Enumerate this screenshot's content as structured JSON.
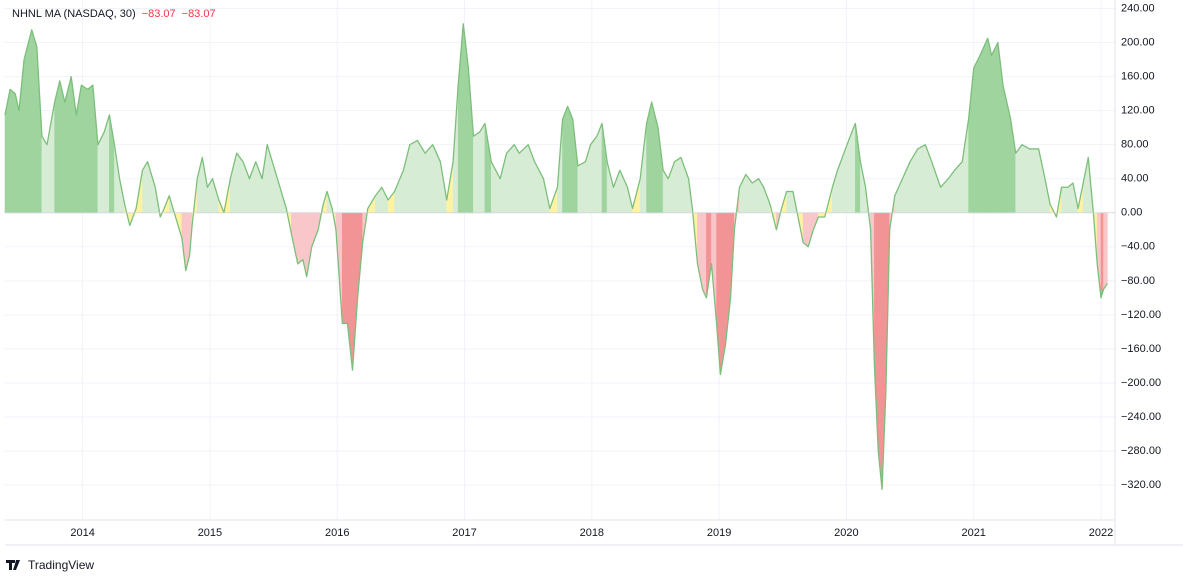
{
  "chart_data": {
    "type": "area",
    "title": "NHNL MA (NASDAQ, 30)",
    "header_values": [
      "−83.07",
      "−83.07"
    ],
    "brand": "TradingView",
    "xlim": [
      2013.39,
      2022.11
    ],
    "xticks": [
      2014,
      2015,
      2016,
      2017,
      2018,
      2019,
      2020,
      2021,
      2022
    ],
    "ylim": [
      -361,
      250
    ],
    "yticks": [
      {
        "value": 240,
        "label": "240.00"
      },
      {
        "value": 200,
        "label": "200.00"
      },
      {
        "value": 160,
        "label": "160.00"
      },
      {
        "value": 120,
        "label": "120.00"
      },
      {
        "value": 80,
        "label": "80.00"
      },
      {
        "value": 40,
        "label": "40.00"
      },
      {
        "value": 0,
        "label": "0.00"
      },
      {
        "value": -40,
        "label": "−40.00"
      },
      {
        "value": -80,
        "label": "−80.00"
      },
      {
        "value": -120,
        "label": "−120.00"
      },
      {
        "value": -160,
        "label": "−160.00"
      },
      {
        "value": -200,
        "label": "−200.00"
      },
      {
        "value": -240,
        "label": "−240.00"
      },
      {
        "value": -280,
        "label": "−280.00"
      },
      {
        "value": -320,
        "label": "−320.00"
      }
    ],
    "grid": true,
    "line_color": "#7cbf7b",
    "x": [
      2013.39,
      2013.43,
      2013.47,
      2013.5,
      2013.54,
      2013.6,
      2013.64,
      2013.68,
      2013.72,
      2013.78,
      2013.82,
      2013.86,
      2013.91,
      2013.95,
      2013.99,
      2014.04,
      2014.08,
      2014.12,
      2014.17,
      2014.21,
      2014.25,
      2014.29,
      2014.33,
      2014.37,
      2014.42,
      2014.47,
      2014.51,
      2014.57,
      2014.61,
      2014.64,
      2014.68,
      2014.72,
      2014.78,
      2014.81,
      2014.84,
      2014.86,
      2014.9,
      2014.94,
      2014.98,
      2015.02,
      2015.07,
      2015.11,
      2015.16,
      2015.21,
      2015.26,
      2015.31,
      2015.36,
      2015.41,
      2015.45,
      2015.49,
      2015.55,
      2015.6,
      2015.64,
      2015.69,
      2015.73,
      2015.76,
      2015.8,
      2015.85,
      2015.89,
      2015.92,
      2015.96,
      2015.99,
      2016.04,
      2016.08,
      2016.12,
      2016.16,
      2016.2,
      2016.24,
      2016.3,
      2016.35,
      2016.4,
      2016.45,
      2016.52,
      2016.57,
      2016.63,
      2016.69,
      2016.75,
      2016.81,
      2016.86,
      2016.91,
      2016.95,
      2016.99,
      2017.03,
      2017.07,
      2017.12,
      2017.16,
      2017.21,
      2017.28,
      2017.33,
      2017.39,
      2017.43,
      2017.5,
      2017.55,
      2017.62,
      2017.67,
      2017.73,
      2017.77,
      2017.81,
      2017.85,
      2017.89,
      2017.95,
      2017.99,
      2018.04,
      2018.08,
      2018.12,
      2018.17,
      2018.22,
      2018.28,
      2018.32,
      2018.38,
      2018.43,
      2018.47,
      2018.52,
      2018.56,
      2018.6,
      2018.65,
      2018.7,
      2018.76,
      2018.79,
      2018.83,
      2018.87,
      2018.9,
      2018.94,
      2018.98,
      2019.01,
      2019.05,
      2019.09,
      2019.12,
      2019.16,
      2019.21,
      2019.26,
      2019.31,
      2019.35,
      2019.4,
      2019.45,
      2019.49,
      2019.53,
      2019.58,
      2019.62,
      2019.66,
      2019.7,
      2019.74,
      2019.78,
      2019.83,
      2019.89,
      2019.93,
      2019.98,
      2020.03,
      2020.07,
      2020.11,
      2020.15,
      2020.19,
      2020.22,
      2020.25,
      2020.28,
      2020.31,
      2020.34,
      2020.38,
      2020.44,
      2020.5,
      2020.56,
      2020.62,
      2020.67,
      2020.74,
      2020.8,
      2020.85,
      2020.91,
      2020.96,
      2021.0,
      2021.05,
      2021.11,
      2021.14,
      2021.19,
      2021.23,
      2021.29,
      2021.33,
      2021.38,
      2021.44,
      2021.51,
      2021.56,
      2021.6,
      2021.65,
      2021.69,
      2021.74,
      2021.78,
      2021.82,
      2021.86,
      2021.9,
      2021.94,
      2021.97,
      2022.0,
      2022.02,
      2022.05
    ],
    "values": [
      115,
      145,
      140,
      120,
      180,
      215,
      195,
      90,
      80,
      130,
      155,
      130,
      160,
      115,
      150,
      145,
      150,
      80,
      95,
      115,
      80,
      40,
      10,
      -15,
      5,
      50,
      60,
      30,
      -5,
      5,
      20,
      0,
      -30,
      -68,
      -50,
      -15,
      40,
      65,
      30,
      40,
      15,
      0,
      40,
      70,
      60,
      40,
      60,
      40,
      80,
      60,
      30,
      5,
      -25,
      -60,
      -55,
      -75,
      -40,
      -20,
      10,
      25,
      5,
      -20,
      -130,
      -130,
      -185,
      -100,
      -35,
      5,
      20,
      30,
      15,
      25,
      50,
      80,
      85,
      70,
      80,
      60,
      15,
      60,
      150,
      222,
      170,
      90,
      95,
      105,
      60,
      40,
      70,
      80,
      70,
      80,
      60,
      40,
      5,
      30,
      110,
      125,
      110,
      55,
      60,
      80,
      90,
      105,
      60,
      30,
      50,
      30,
      5,
      40,
      105,
      130,
      100,
      50,
      40,
      60,
      65,
      40,
      5,
      -60,
      -90,
      -100,
      -60,
      -130,
      -190,
      -155,
      -100,
      -20,
      30,
      45,
      35,
      40,
      30,
      10,
      -20,
      5,
      25,
      25,
      -5,
      -35,
      -40,
      -20,
      -5,
      -5,
      30,
      50,
      70,
      90,
      105,
      60,
      30,
      -20,
      -180,
      -280,
      -325,
      -210,
      -20,
      20,
      40,
      60,
      75,
      80,
      60,
      30,
      40,
      50,
      60,
      110,
      170,
      185,
      205,
      185,
      200,
      150,
      110,
      70,
      80,
      75,
      75,
      40,
      10,
      -5,
      30,
      30,
      35,
      5,
      35,
      65,
      0,
      -60,
      -100,
      -90,
      -83.07
    ],
    "point_colors": [
      "#9fd49f",
      "#9fd49f",
      "#9fd49f",
      "#9fd49f",
      "#9fd49f",
      "#9fd49f",
      "#9fd49f",
      "#d6ecd4",
      "#d6ecd4",
      "#9fd49f",
      "#9fd49f",
      "#9fd49f",
      "#9fd49f",
      "#9fd49f",
      "#9fd49f",
      "#9fd49f",
      "#9fd49f",
      "#d6ecd4",
      "#d6ecd4",
      "#9fd49f",
      "#d6ecd4",
      "#d6ecd4",
      "#fff3a3",
      "#fff3a3",
      "#fff3a3",
      "#d6ecd4",
      "#d6ecd4",
      "#d6ecd4",
      "#fff3a3",
      "#fff3a3",
      "#d6ecd4",
      "#fff3a3",
      "#f9c7c9",
      "#f9c7c9",
      "#f9c7c9",
      "#fff3a3",
      "#d6ecd4",
      "#d6ecd4",
      "#d6ecd4",
      "#d6ecd4",
      "#fff3a3",
      "#fff3a3",
      "#d6ecd4",
      "#d6ecd4",
      "#d6ecd4",
      "#d6ecd4",
      "#d6ecd4",
      "#d6ecd4",
      "#d6ecd4",
      "#d6ecd4",
      "#d6ecd4",
      "#fff3a3",
      "#f9c7c9",
      "#f9c7c9",
      "#f9c7c9",
      "#f9c7c9",
      "#f9c7c9",
      "#f9c7c9",
      "#fff3a3",
      "#d6ecd4",
      "#fff3a3",
      "#f9c7c9",
      "#f29496",
      "#f29496",
      "#f29496",
      "#f29496",
      "#f9c7c9",
      "#fff3a3",
      "#d6ecd4",
      "#d6ecd4",
      "#fff3a3",
      "#d6ecd4",
      "#d6ecd4",
      "#d6ecd4",
      "#d6ecd4",
      "#d6ecd4",
      "#d6ecd4",
      "#d6ecd4",
      "#fff3a3",
      "#d6ecd4",
      "#9fd49f",
      "#9fd49f",
      "#9fd49f",
      "#d6ecd4",
      "#d6ecd4",
      "#9fd49f",
      "#d6ecd4",
      "#d6ecd4",
      "#d6ecd4",
      "#d6ecd4",
      "#d6ecd4",
      "#d6ecd4",
      "#d6ecd4",
      "#d6ecd4",
      "#fff3a3",
      "#d6ecd4",
      "#9fd49f",
      "#9fd49f",
      "#9fd49f",
      "#d6ecd4",
      "#d6ecd4",
      "#d6ecd4",
      "#d6ecd4",
      "#9fd49f",
      "#d6ecd4",
      "#d6ecd4",
      "#d6ecd4",
      "#d6ecd4",
      "#fff3a3",
      "#d6ecd4",
      "#9fd49f",
      "#9fd49f",
      "#9fd49f",
      "#d6ecd4",
      "#d6ecd4",
      "#d6ecd4",
      "#d6ecd4",
      "#d6ecd4",
      "#fff3a3",
      "#f9c7c9",
      "#f9c7c9",
      "#f29496",
      "#f9c7c9",
      "#f29496",
      "#f29496",
      "#f29496",
      "#f29496",
      "#f9c7c9",
      "#d6ecd4",
      "#d6ecd4",
      "#d6ecd4",
      "#d6ecd4",
      "#d6ecd4",
      "#fff3a3",
      "#f9c7c9",
      "#fff3a3",
      "#d6ecd4",
      "#d6ecd4",
      "#fff3a3",
      "#f9c7c9",
      "#f9c7c9",
      "#f9c7c9",
      "#fff3a3",
      "#fff3a3",
      "#d6ecd4",
      "#d6ecd4",
      "#d6ecd4",
      "#d6ecd4",
      "#9fd49f",
      "#d6ecd4",
      "#d6ecd4",
      "#f9c7c9",
      "#f29496",
      "#f29496",
      "#f29496",
      "#f29496",
      "#f9c7c9",
      "#d6ecd4",
      "#d6ecd4",
      "#d6ecd4",
      "#d6ecd4",
      "#d6ecd4",
      "#d6ecd4",
      "#d6ecd4",
      "#d6ecd4",
      "#d6ecd4",
      "#d6ecd4",
      "#9fd49f",
      "#9fd49f",
      "#9fd49f",
      "#9fd49f",
      "#9fd49f",
      "#9fd49f",
      "#9fd49f",
      "#9fd49f",
      "#d6ecd4",
      "#d6ecd4",
      "#d6ecd4",
      "#d6ecd4",
      "#d6ecd4",
      "#fff3a3",
      "#fff3a3",
      "#d6ecd4",
      "#d6ecd4",
      "#d6ecd4",
      "#fff3a3",
      "#d6ecd4",
      "#d6ecd4",
      "#fff3a3",
      "#f9c7c9",
      "#f29496",
      "#f9c7c9",
      "#f9c7c9"
    ]
  }
}
